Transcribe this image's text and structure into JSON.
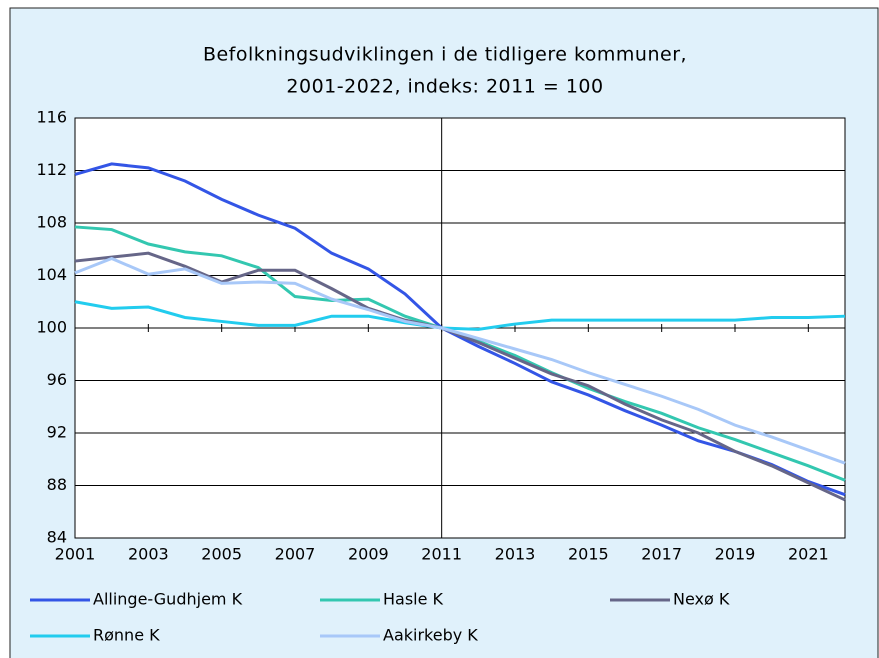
{
  "chart_data": {
    "type": "line",
    "title": [
      "Befolkningsudviklingen i de tidligere kommuner,",
      "2001-2022, indeks: 2011 = 100"
    ],
    "x": [
      2001,
      2002,
      2003,
      2004,
      2005,
      2006,
      2007,
      2008,
      2009,
      2010,
      2011,
      2012,
      2013,
      2014,
      2015,
      2016,
      2017,
      2018,
      2019,
      2020,
      2021,
      2022
    ],
    "xlim": [
      2001,
      2022
    ],
    "xticks": [
      2001,
      2003,
      2005,
      2007,
      2009,
      2011,
      2013,
      2015,
      2017,
      2019,
      2021
    ],
    "ylim": [
      84,
      116
    ],
    "yticks": [
      84,
      88,
      92,
      96,
      100,
      104,
      108,
      112,
      116
    ],
    "grid": true,
    "series": [
      {
        "name": "Allinge-Gudhjem K",
        "color": "#3355e6",
        "values": [
          111.7,
          112.5,
          112.2,
          111.2,
          109.8,
          108.6,
          107.6,
          105.7,
          104.5,
          102.6,
          100,
          98.6,
          97.3,
          95.9,
          94.9,
          93.7,
          92.6,
          91.4,
          90.6,
          89.6,
          88.3,
          87.3
        ]
      },
      {
        "name": "Hasle K",
        "color": "#33c7b0",
        "values": [
          107.7,
          107.5,
          106.4,
          105.8,
          105.5,
          104.6,
          102.4,
          102.1,
          102.2,
          100.9,
          100,
          99.0,
          97.9,
          96.6,
          95.4,
          94.4,
          93.5,
          92.4,
          91.5,
          90.5,
          89.5,
          88.4
        ]
      },
      {
        "name": "Nexø K",
        "color": "#666688",
        "values": [
          105.1,
          105.4,
          105.7,
          104.7,
          103.5,
          104.4,
          104.4,
          103.0,
          101.5,
          100.6,
          100,
          98.9,
          97.7,
          96.5,
          95.6,
          94.2,
          93.0,
          92.0,
          90.6,
          89.5,
          88.2,
          86.9
        ]
      },
      {
        "name": "Rønne K",
        "color": "#22ccee",
        "values": [
          102.0,
          101.5,
          101.6,
          100.8,
          100.5,
          100.2,
          100.2,
          100.9,
          100.9,
          100.4,
          100,
          99.9,
          100.3,
          100.6,
          100.6,
          100.6,
          100.6,
          100.6,
          100.6,
          100.8,
          100.8,
          100.9
        ]
      },
      {
        "name": "Aakirkeby K",
        "color": "#a8c8f8",
        "values": [
          104.2,
          105.3,
          104.1,
          104.5,
          103.4,
          103.5,
          103.4,
          102.2,
          101.4,
          100.5,
          100,
          99.2,
          98.4,
          97.6,
          96.6,
          95.7,
          94.8,
          93.8,
          92.6,
          91.7,
          90.7,
          89.7
        ]
      }
    ]
  }
}
